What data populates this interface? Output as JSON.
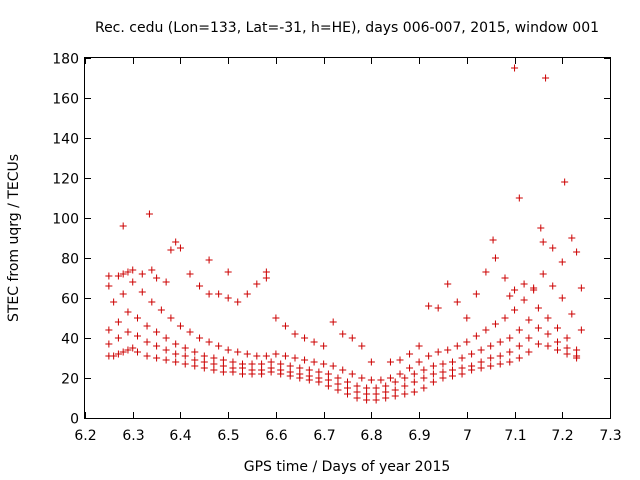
{
  "chart_data": {
    "type": "scatter",
    "title": "Rec. cedu (Lon=133, Lat=-31, h=HE), days 006-007, 2015, window 001",
    "xlabel": "GPS time / Days of year 2015",
    "ylabel": "STEC from uqrg / TECUs",
    "xlim": [
      6.2,
      7.3
    ],
    "ylim": [
      0,
      180
    ],
    "xticks": [
      6.2,
      6.3,
      6.4,
      6.5,
      6.6,
      6.7,
      6.8,
      6.9,
      7.0,
      7.1,
      7.2,
      7.3
    ],
    "xtick_labels": [
      "6.2",
      "6.3",
      "6.4",
      "6.5",
      "6.6",
      "6.7",
      "6.8",
      "6.9",
      "7",
      "7.1",
      "7.2",
      "7.3"
    ],
    "yticks": [
      0,
      20,
      40,
      60,
      80,
      100,
      120,
      140,
      160,
      180
    ],
    "ytick_labels": [
      "0",
      "20",
      "40",
      "60",
      "80",
      "100",
      "120",
      "140",
      "160",
      "180"
    ],
    "marker": "+",
    "color": "#cc0000",
    "series": [
      {
        "name": "STEC",
        "points": [
          [
            6.25,
            31
          ],
          [
            6.26,
            31
          ],
          [
            6.27,
            32
          ],
          [
            6.28,
            33
          ],
          [
            6.29,
            34
          ],
          [
            6.3,
            35
          ],
          [
            6.31,
            33
          ],
          [
            6.33,
            31
          ],
          [
            6.35,
            30
          ],
          [
            6.37,
            29
          ],
          [
            6.39,
            28
          ],
          [
            6.41,
            27
          ],
          [
            6.43,
            26
          ],
          [
            6.45,
            25
          ],
          [
            6.47,
            24
          ],
          [
            6.49,
            23
          ],
          [
            6.51,
            23
          ],
          [
            6.53,
            22
          ],
          [
            6.55,
            22
          ],
          [
            6.57,
            22
          ],
          [
            6.59,
            23
          ],
          [
            6.61,
            22
          ],
          [
            6.63,
            21
          ],
          [
            6.65,
            20
          ],
          [
            6.67,
            19
          ],
          [
            6.69,
            18
          ],
          [
            6.71,
            16
          ],
          [
            6.73,
            14
          ],
          [
            6.75,
            12
          ],
          [
            6.77,
            10
          ],
          [
            6.79,
            9
          ],
          [
            6.81,
            9
          ],
          [
            6.83,
            10
          ],
          [
            6.85,
            11
          ],
          [
            6.87,
            12
          ],
          [
            6.89,
            13
          ],
          [
            6.91,
            15
          ],
          [
            6.93,
            18
          ],
          [
            6.95,
            20
          ],
          [
            6.97,
            21
          ],
          [
            6.99,
            22
          ],
          [
            7.01,
            24
          ],
          [
            7.03,
            25
          ],
          [
            7.05,
            26
          ],
          [
            7.07,
            27
          ],
          [
            7.09,
            28
          ],
          [
            7.11,
            30
          ],
          [
            7.13,
            33
          ],
          [
            7.15,
            37
          ],
          [
            7.17,
            36
          ],
          [
            7.19,
            34
          ],
          [
            7.21,
            32
          ],
          [
            7.23,
            30
          ],
          [
            6.25,
            37
          ],
          [
            6.27,
            40
          ],
          [
            6.29,
            43
          ],
          [
            6.31,
            41
          ],
          [
            6.33,
            38
          ],
          [
            6.35,
            36
          ],
          [
            6.37,
            34
          ],
          [
            6.39,
            32
          ],
          [
            6.41,
            31
          ],
          [
            6.43,
            29
          ],
          [
            6.45,
            28
          ],
          [
            6.47,
            27
          ],
          [
            6.49,
            26
          ],
          [
            6.51,
            25
          ],
          [
            6.53,
            25
          ],
          [
            6.55,
            24
          ],
          [
            6.57,
            24
          ],
          [
            6.59,
            25
          ],
          [
            6.61,
            24
          ],
          [
            6.63,
            23
          ],
          [
            6.65,
            22
          ],
          [
            6.67,
            21
          ],
          [
            6.69,
            20
          ],
          [
            6.71,
            19
          ],
          [
            6.73,
            17
          ],
          [
            6.75,
            15
          ],
          [
            6.77,
            13
          ],
          [
            6.79,
            12
          ],
          [
            6.81,
            12
          ],
          [
            6.83,
            13
          ],
          [
            6.85,
            14
          ],
          [
            6.87,
            16
          ],
          [
            6.89,
            18
          ],
          [
            6.91,
            20
          ],
          [
            6.93,
            22
          ],
          [
            6.95,
            23
          ],
          [
            6.97,
            24
          ],
          [
            6.99,
            25
          ],
          [
            7.01,
            26
          ],
          [
            7.03,
            28
          ],
          [
            7.05,
            30
          ],
          [
            7.07,
            31
          ],
          [
            7.09,
            33
          ],
          [
            7.11,
            36
          ],
          [
            7.13,
            40
          ],
          [
            7.15,
            45
          ],
          [
            7.17,
            42
          ],
          [
            7.19,
            38
          ],
          [
            7.21,
            35
          ],
          [
            7.23,
            31
          ],
          [
            6.25,
            44
          ],
          [
            6.27,
            48
          ],
          [
            6.29,
            53
          ],
          [
            6.31,
            50
          ],
          [
            6.33,
            46
          ],
          [
            6.35,
            43
          ],
          [
            6.37,
            40
          ],
          [
            6.39,
            37
          ],
          [
            6.41,
            35
          ],
          [
            6.43,
            33
          ],
          [
            6.45,
            31
          ],
          [
            6.47,
            30
          ],
          [
            6.49,
            29
          ],
          [
            6.51,
            28
          ],
          [
            6.53,
            27
          ],
          [
            6.55,
            27
          ],
          [
            6.57,
            27
          ],
          [
            6.59,
            28
          ],
          [
            6.61,
            27
          ],
          [
            6.63,
            26
          ],
          [
            6.65,
            25
          ],
          [
            6.67,
            24
          ],
          [
            6.69,
            23
          ],
          [
            6.71,
            22
          ],
          [
            6.73,
            20
          ],
          [
            6.75,
            18
          ],
          [
            6.77,
            16
          ],
          [
            6.79,
            15
          ],
          [
            6.81,
            15
          ],
          [
            6.83,
            16
          ],
          [
            6.85,
            18
          ],
          [
            6.87,
            20
          ],
          [
            6.89,
            22
          ],
          [
            6.91,
            24
          ],
          [
            6.93,
            26
          ],
          [
            6.95,
            27
          ],
          [
            6.97,
            28
          ],
          [
            6.99,
            30
          ],
          [
            7.01,
            32
          ],
          [
            7.03,
            34
          ],
          [
            7.05,
            36
          ],
          [
            7.07,
            38
          ],
          [
            7.09,
            40
          ],
          [
            7.11,
            44
          ],
          [
            7.13,
            49
          ],
          [
            7.15,
            55
          ],
          [
            7.17,
            50
          ],
          [
            7.19,
            45
          ],
          [
            7.21,
            40
          ],
          [
            7.23,
            34
          ],
          [
            6.26,
            58
          ],
          [
            6.28,
            62
          ],
          [
            6.3,
            68
          ],
          [
            6.32,
            63
          ],
          [
            6.34,
            58
          ],
          [
            6.36,
            54
          ],
          [
            6.38,
            50
          ],
          [
            6.4,
            46
          ],
          [
            6.42,
            43
          ],
          [
            6.44,
            40
          ],
          [
            6.46,
            38
          ],
          [
            6.48,
            36
          ],
          [
            6.5,
            34
          ],
          [
            6.52,
            33
          ],
          [
            6.54,
            32
          ],
          [
            6.56,
            31
          ],
          [
            6.58,
            31
          ],
          [
            6.6,
            32
          ],
          [
            6.62,
            31
          ],
          [
            6.64,
            30
          ],
          [
            6.66,
            29
          ],
          [
            6.68,
            28
          ],
          [
            6.7,
            27
          ],
          [
            6.72,
            26
          ],
          [
            6.74,
            24
          ],
          [
            6.76,
            22
          ],
          [
            6.78,
            20
          ],
          [
            6.8,
            19
          ],
          [
            6.82,
            19
          ],
          [
            6.84,
            20
          ],
          [
            6.86,
            22
          ],
          [
            6.88,
            25
          ],
          [
            6.9,
            28
          ],
          [
            6.92,
            31
          ],
          [
            6.94,
            33
          ],
          [
            6.96,
            34
          ],
          [
            6.98,
            36
          ],
          [
            7.0,
            38
          ],
          [
            7.02,
            41
          ],
          [
            7.04,
            44
          ],
          [
            7.06,
            47
          ],
          [
            7.08,
            50
          ],
          [
            7.1,
            54
          ],
          [
            7.12,
            59
          ],
          [
            7.14,
            65
          ],
          [
            7.16,
            72
          ],
          [
            7.18,
            66
          ],
          [
            7.2,
            60
          ],
          [
            7.22,
            52
          ],
          [
            7.24,
            44
          ],
          [
            6.25,
            66
          ],
          [
            6.25,
            71
          ],
          [
            6.27,
            71
          ],
          [
            6.28,
            72
          ],
          [
            6.29,
            73
          ],
          [
            6.3,
            74
          ],
          [
            6.32,
            72
          ],
          [
            6.34,
            74
          ],
          [
            6.35,
            70
          ],
          [
            6.37,
            68
          ],
          [
            6.38,
            84
          ],
          [
            6.39,
            88
          ],
          [
            6.4,
            85
          ],
          [
            6.42,
            72
          ],
          [
            6.44,
            66
          ],
          [
            6.46,
            62
          ],
          [
            6.48,
            62
          ],
          [
            6.5,
            60
          ],
          [
            6.52,
            58
          ],
          [
            6.54,
            62
          ],
          [
            6.56,
            67
          ],
          [
            6.58,
            70
          ],
          [
            6.6,
            50
          ],
          [
            6.62,
            46
          ],
          [
            6.64,
            42
          ],
          [
            6.66,
            40
          ],
          [
            6.68,
            38
          ],
          [
            6.7,
            36
          ],
          [
            6.72,
            48
          ],
          [
            6.74,
            42
          ],
          [
            6.76,
            40
          ],
          [
            6.78,
            36
          ],
          [
            6.8,
            28
          ],
          [
            6.84,
            28
          ],
          [
            6.86,
            29
          ],
          [
            6.88,
            32
          ],
          [
            6.9,
            36
          ],
          [
            6.92,
            56
          ],
          [
            6.94,
            55
          ],
          [
            6.96,
            67
          ],
          [
            6.98,
            58
          ],
          [
            7.0,
            50
          ],
          [
            7.02,
            62
          ],
          [
            7.04,
            73
          ],
          [
            7.06,
            80
          ],
          [
            7.08,
            70
          ],
          [
            7.1,
            64
          ],
          [
            7.12,
            67
          ],
          [
            7.14,
            64
          ],
          [
            7.16,
            88
          ],
          [
            7.18,
            85
          ],
          [
            7.2,
            78
          ],
          [
            7.22,
            90
          ],
          [
            7.24,
            65
          ],
          [
            6.28,
            96
          ],
          [
            6.335,
            102
          ],
          [
            6.46,
            79
          ],
          [
            6.5,
            73
          ],
          [
            6.58,
            73
          ],
          [
            7.055,
            89
          ],
          [
            7.09,
            61
          ],
          [
            7.11,
            110
          ],
          [
            7.155,
            95
          ],
          [
            7.205,
            118
          ],
          [
            7.23,
            83
          ],
          [
            7.1,
            175
          ],
          [
            7.165,
            170
          ]
        ]
      }
    ]
  }
}
